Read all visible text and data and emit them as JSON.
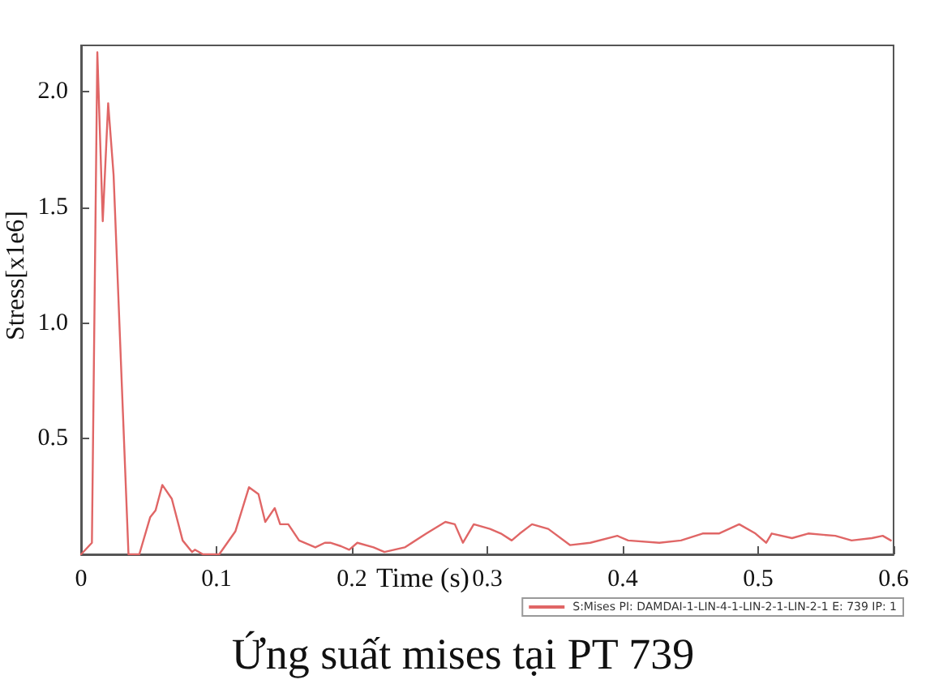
{
  "chart_data": {
    "type": "line",
    "title": "Ứng suất mises tại PT 739",
    "xlabel": "Time (s)",
    "ylabel": "Stress[x1e6]",
    "xlim": [
      0,
      0.6
    ],
    "xticks": [
      0,
      0.1,
      0.2,
      0.3,
      0.4,
      0.5,
      0.6
    ],
    "ylim": [
      0,
      2.2
    ],
    "yticks": [
      {
        "value": 0,
        "label": null
      },
      0.5,
      {
        "value": 1,
        "label": "1.0"
      },
      1.5,
      {
        "value": 2,
        "label": "2.0"
      }
    ],
    "grid": false,
    "legend": "bottom right",
    "marker": "none",
    "line_style": "solid",
    "series": [
      {
        "name": "S:Mises PI: DAMDAI-1-LIN-4-1-LIN-2-1-LIN-2-1 E: 739 IP: 1",
        "color": "#e06666",
        "x": [
          0,
          0.008,
          0.012,
          0.016,
          0.02,
          0.024,
          0.035,
          0.043,
          0.051,
          0.055,
          0.06,
          0.067,
          0.075,
          0.082,
          0.084,
          0.09,
          0.102,
          0.114,
          0.124,
          0.131,
          0.136,
          0.143,
          0.147,
          0.153,
          0.161,
          0.173,
          0.18,
          0.184,
          0.192,
          0.198,
          0.204,
          0.216,
          0.224,
          0.239,
          0.255,
          0.269,
          0.276,
          0.282,
          0.29,
          0.302,
          0.31,
          0.318,
          0.324,
          0.333,
          0.345,
          0.361,
          0.376,
          0.396,
          0.404,
          0.427,
          0.443,
          0.459,
          0.471,
          0.486,
          0.498,
          0.506,
          0.51,
          0.525,
          0.537,
          0.557,
          0.569,
          0.584,
          0.592,
          0.598
        ],
        "values": [
          0,
          0.05,
          2.17,
          1.44,
          1.95,
          1.64,
          0,
          0,
          0.16,
          0.19,
          0.3,
          0.24,
          0.06,
          0.01,
          0.02,
          0,
          0,
          0.1,
          0.29,
          0.26,
          0.14,
          0.2,
          0.13,
          0.13,
          0.06,
          0.03,
          0.05,
          0.05,
          0.035,
          0.02,
          0.05,
          0.03,
          0.01,
          0.03,
          0.09,
          0.14,
          0.13,
          0.05,
          0.13,
          0.11,
          0.09,
          0.06,
          0.09,
          0.13,
          0.11,
          0.04,
          0.05,
          0.08,
          0.06,
          0.05,
          0.06,
          0.09,
          0.09,
          0.13,
          0.09,
          0.05,
          0.09,
          0.07,
          0.09,
          0.08,
          0.06,
          0.07,
          0.08,
          0.06
        ]
      }
    ]
  }
}
